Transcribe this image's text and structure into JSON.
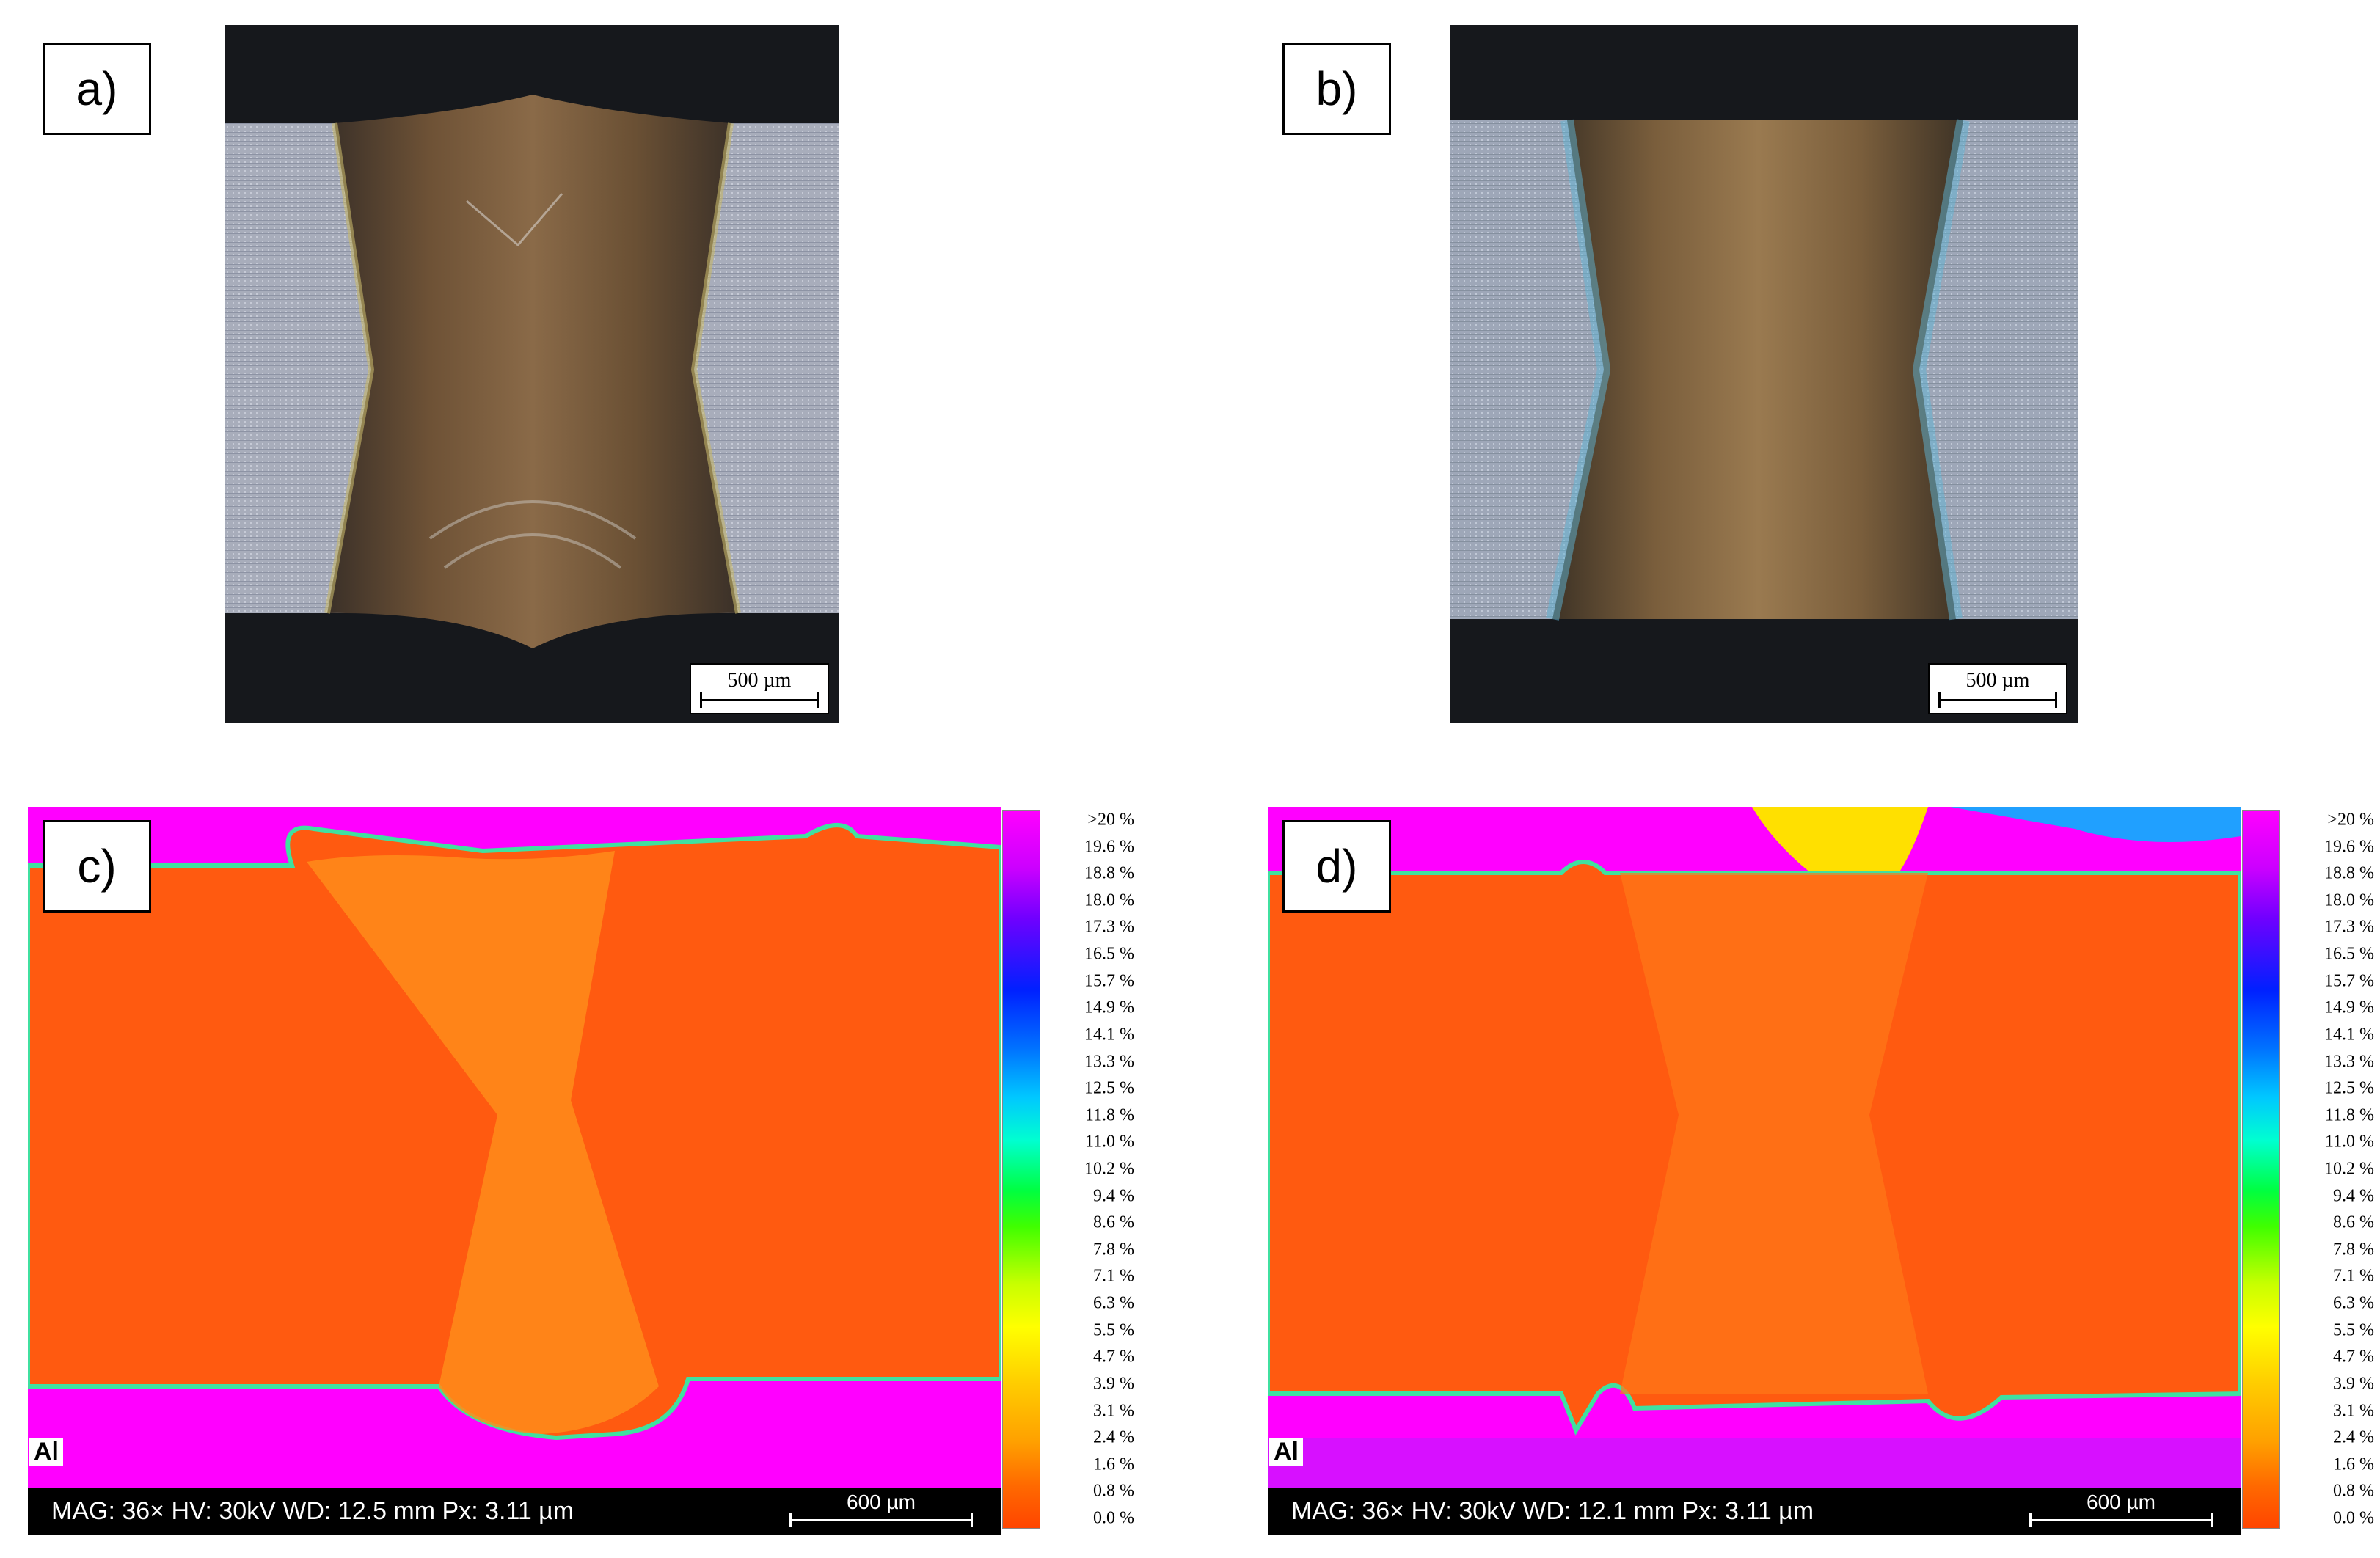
{
  "panels": {
    "a": {
      "label": "a)",
      "scale_bar": "500 µm"
    },
    "b": {
      "label": "b)",
      "scale_bar": "500 µm"
    },
    "c": {
      "label": "c)",
      "element": "Al",
      "info": "MAG: 36×  HV: 30kV   WD: 12.5 mm Px: 3.11 µm",
      "scale_bar": "600 µm"
    },
    "d": {
      "label": "d)",
      "element": "Al",
      "info": "MAG: 36×  HV: 30kV   WD: 12.1 mm Px: 3.11 µm",
      "scale_bar": "600 µm"
    }
  },
  "color_scale": {
    "ticks": [
      ">20 %",
      "19.6 %",
      "18.8 %",
      "18.0 %",
      "17.3 %",
      "16.5 %",
      "15.7 %",
      "14.9 %",
      "14.1 %",
      "13.3 %",
      "12.5 %",
      "11.8 %",
      "11.0 %",
      "10.2 %",
      "9.4 %",
      "8.6 %",
      "7.8 %",
      "7.1 %",
      "6.3 %",
      "5.5 %",
      "4.7 %",
      "3.9 %",
      "3.1 %",
      "2.4 %",
      "1.6 %",
      "0.8 %",
      "0.0 %"
    ]
  },
  "colors": {
    "magenta": "#ff00ff",
    "orange": "#ff5a10",
    "weld_orange": "#ff8c1a",
    "base_metal": "#a9aebd",
    "weld_dark": "#5a4530"
  }
}
